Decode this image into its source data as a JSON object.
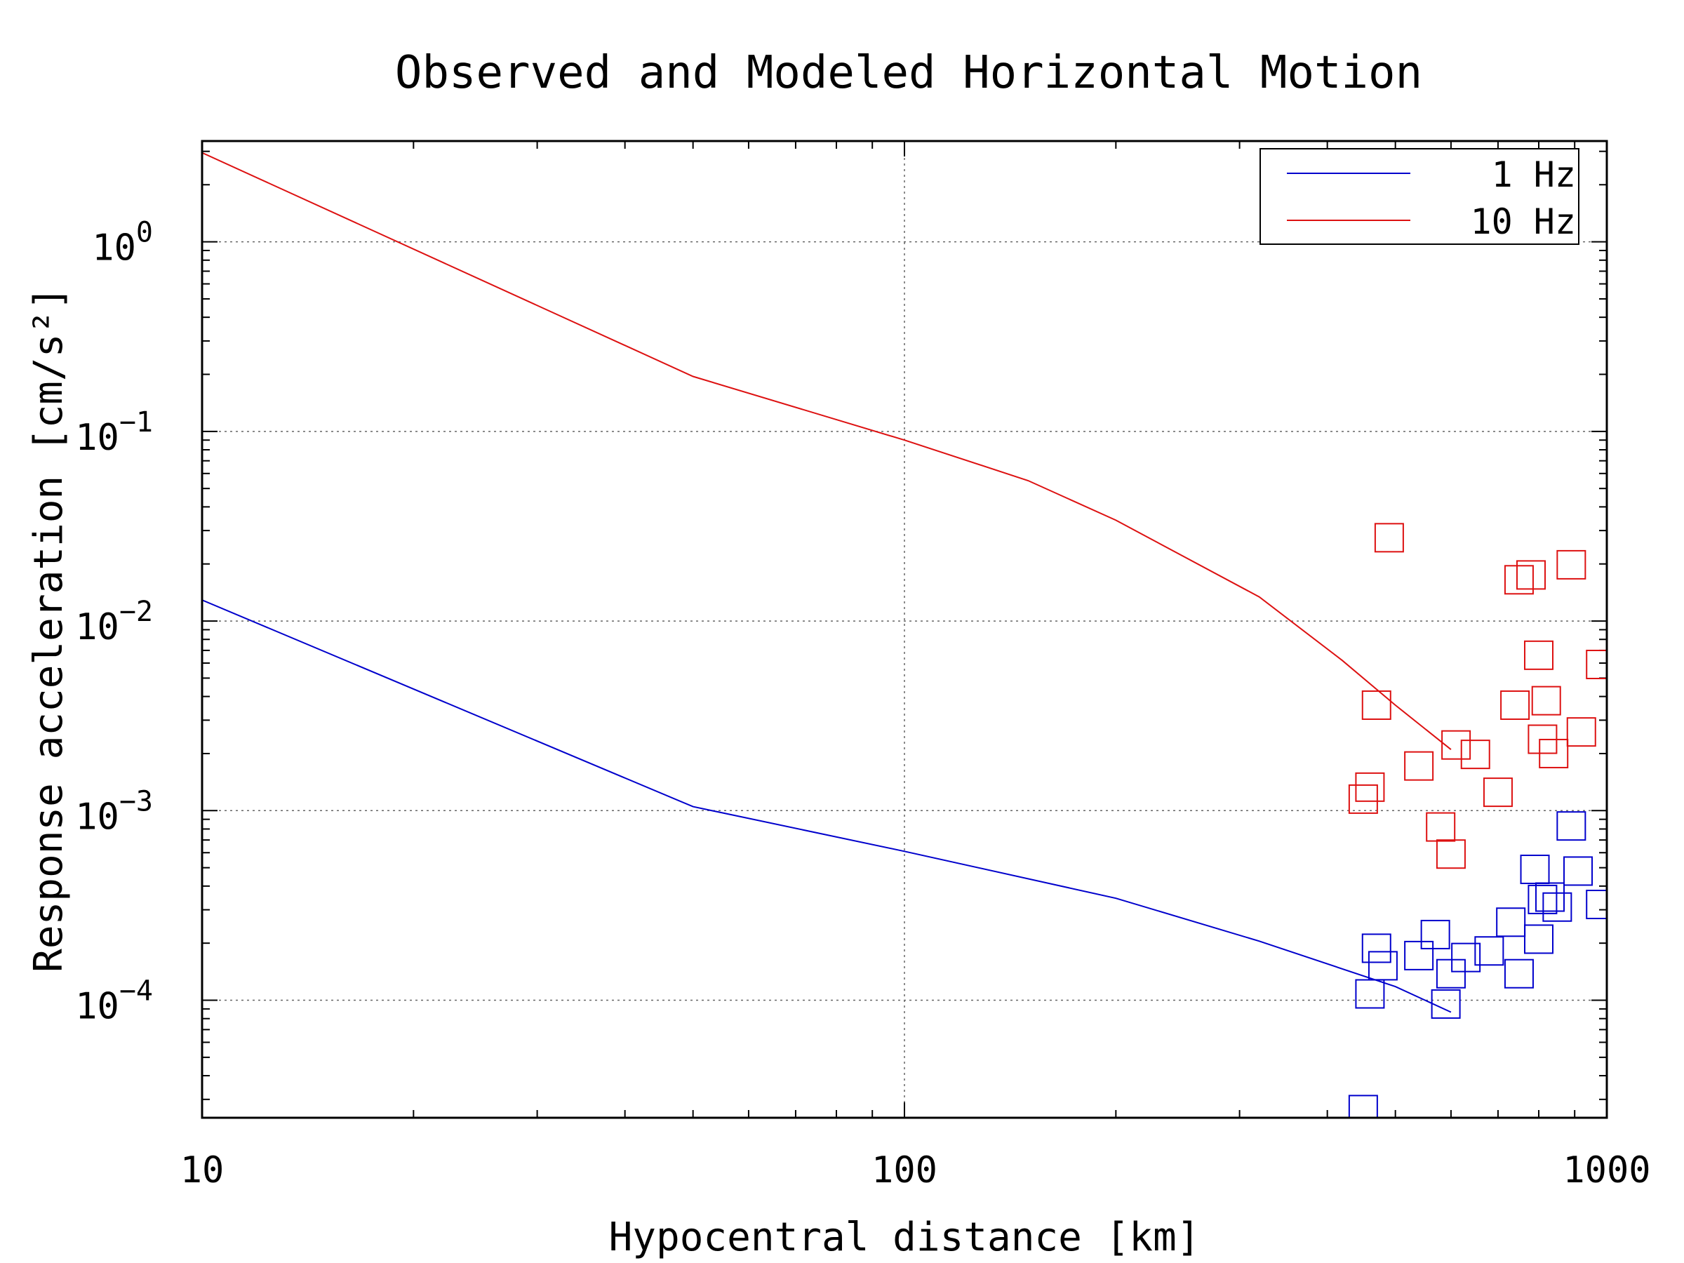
{
  "chart_data": {
    "type": "scatter",
    "title": "Observed and Modeled Horizontal Motion",
    "xlabel": "Hypocentral distance [km]",
    "ylabel": "Response acceleration [cm/s²]",
    "x_scale": "log",
    "y_scale": "log",
    "xlim": [
      10,
      1000
    ],
    "ylim": [
      2.4e-05,
      3.4
    ],
    "x_ticks": [
      {
        "value": 10,
        "label": "10"
      },
      {
        "value": 100,
        "label": "100"
      },
      {
        "value": 1000,
        "label": "1000"
      }
    ],
    "y_ticks": [
      {
        "value": 1,
        "base": "10",
        "exp": "0"
      },
      {
        "value": 0.1,
        "base": "10",
        "exp": "−1"
      },
      {
        "value": 0.01,
        "base": "10",
        "exp": "−2"
      },
      {
        "value": 0.001,
        "base": "10",
        "exp": "−3"
      },
      {
        "value": 0.0001,
        "base": "10",
        "exp": "−4"
      }
    ],
    "grid": true,
    "legend_position": "top-right",
    "series": [
      {
        "name": "1 Hz",
        "color": "#0000cc",
        "line": [
          [
            10,
            0.0129
          ],
          [
            50,
            0.00105
          ],
          [
            100,
            0.00061
          ],
          [
            200,
            0.000345
          ],
          [
            320,
            0.000205
          ],
          [
            500,
            0.000118
          ],
          [
            600,
            8.65e-05
          ]
        ],
        "points": [
          [
            450,
            2.65e-05
          ],
          [
            460,
            0.000108
          ],
          [
            470,
            0.000188
          ],
          [
            480,
            0.000152
          ],
          [
            540,
            0.000172
          ],
          [
            570,
            0.000222
          ],
          [
            590,
            9.55e-05
          ],
          [
            600,
            0.000138
          ],
          [
            630,
            0.000168
          ],
          [
            680,
            0.000182
          ],
          [
            730,
            0.000258
          ],
          [
            750,
            0.000138
          ],
          [
            790,
            0.00049
          ],
          [
            800,
            0.00021
          ],
          [
            810,
            0.00034
          ],
          [
            830,
            0.00035
          ],
          [
            850,
            0.00031
          ],
          [
            890,
            0.00083
          ],
          [
            910,
            0.00048
          ],
          [
            980,
            0.00032
          ]
        ]
      },
      {
        "name": "10 Hz",
        "color": "#dd1111",
        "line": [
          [
            10,
            2.95
          ],
          [
            50,
            0.195
          ],
          [
            100,
            0.09
          ],
          [
            150,
            0.055
          ],
          [
            200,
            0.034
          ],
          [
            320,
            0.0134
          ],
          [
            420,
            0.0062
          ],
          [
            500,
            0.0036
          ],
          [
            600,
            0.0021
          ]
        ],
        "points": [
          [
            450,
            0.00115
          ],
          [
            460,
            0.00133
          ],
          [
            470,
            0.0036
          ],
          [
            490,
            0.0275
          ],
          [
            540,
            0.00172
          ],
          [
            580,
            0.00082
          ],
          [
            600,
            0.00059
          ],
          [
            610,
            0.00222
          ],
          [
            650,
            0.00198
          ],
          [
            700,
            0.00125
          ],
          [
            740,
            0.0036
          ],
          [
            750,
            0.0165
          ],
          [
            780,
            0.0175
          ],
          [
            800,
            0.0066
          ],
          [
            810,
            0.00238
          ],
          [
            820,
            0.0038
          ],
          [
            840,
            0.002
          ],
          [
            890,
            0.0198
          ],
          [
            920,
            0.0026
          ],
          [
            980,
            0.0059
          ]
        ]
      }
    ]
  }
}
